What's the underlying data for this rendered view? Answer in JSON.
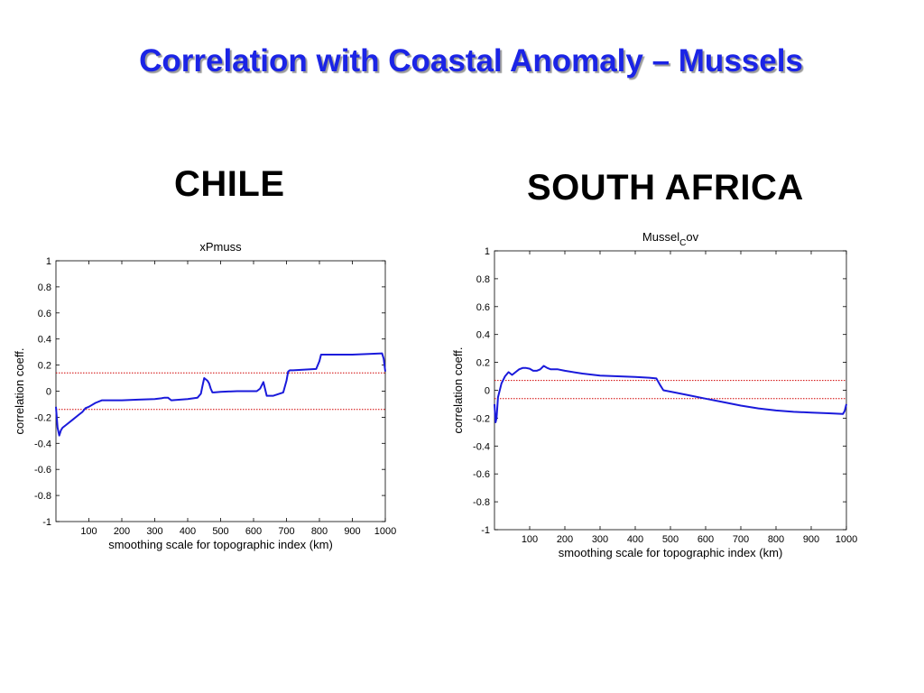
{
  "slide": {
    "title": "Correlation with Coastal Anomaly – Mussels"
  },
  "countries": [
    "CHILE",
    "SOUTH AFRICA"
  ],
  "colors": {
    "title": "#1b24e6",
    "line": "#1a1adb",
    "threshold": "#d10000"
  },
  "chart_data": [
    {
      "type": "line",
      "panel": "CHILE",
      "title": "xPmuss",
      "xlabel": "smoothing scale for topographic index (km)",
      "ylabel": "correlation coeff.",
      "xlim": [
        0,
        1000
      ],
      "ylim": [
        -1,
        1
      ],
      "xticks": [
        100,
        200,
        300,
        400,
        500,
        600,
        700,
        800,
        900,
        1000
      ],
      "yticks": [
        -1,
        -0.8,
        -0.6,
        -0.4,
        -0.2,
        0,
        0.2,
        0.4,
        0.6,
        0.8,
        1
      ],
      "grid": false,
      "series": [
        {
          "x": [
            0,
            5,
            10,
            15,
            20,
            30,
            50,
            70,
            80,
            90,
            100,
            120,
            140,
            160,
            170,
            200,
            250,
            300,
            320,
            330,
            340,
            350,
            400,
            430,
            440,
            445,
            450,
            460,
            465,
            470,
            475,
            480,
            500,
            550,
            610,
            620,
            630,
            640,
            660,
            690,
            700,
            705,
            710,
            720,
            790,
            800,
            805,
            810,
            850,
            900,
            950,
            990,
            995,
            1000
          ],
          "y": [
            -0.12,
            -0.28,
            -0.34,
            -0.3,
            -0.28,
            -0.26,
            -0.22,
            -0.18,
            -0.16,
            -0.13,
            -0.12,
            -0.09,
            -0.07,
            -0.07,
            -0.07,
            -0.07,
            -0.065,
            -0.06,
            -0.055,
            -0.05,
            -0.05,
            -0.07,
            -0.06,
            -0.05,
            -0.02,
            0.04,
            0.1,
            0.08,
            0.06,
            0.02,
            -0.01,
            -0.01,
            -0.005,
            0.0,
            0.0,
            0.02,
            0.07,
            -0.035,
            -0.035,
            -0.01,
            0.08,
            0.15,
            0.16,
            0.16,
            0.17,
            0.23,
            0.28,
            0.28,
            0.28,
            0.28,
            0.285,
            0.29,
            0.25,
            0.15
          ]
        }
      ],
      "thresholds": [
        0.14,
        -0.14
      ]
    },
    {
      "type": "line",
      "panel": "SOUTH AFRICA",
      "title": "MusselCov",
      "title_parts": [
        "Mussel",
        "C",
        "ov"
      ],
      "xlabel": "smoothing scale for topographic index (km)",
      "ylabel": "correlation coeff.",
      "xlim": [
        0,
        1000
      ],
      "ylim": [
        -1,
        1
      ],
      "xticks": [
        100,
        200,
        300,
        400,
        500,
        600,
        700,
        800,
        900,
        1000
      ],
      "yticks": [
        -1,
        -0.8,
        -0.6,
        -0.4,
        -0.2,
        0,
        0.2,
        0.4,
        0.6,
        0.8,
        1
      ],
      "grid": false,
      "series": [
        {
          "x": [
            0,
            3,
            6,
            10,
            20,
            30,
            40,
            50,
            60,
            70,
            80,
            90,
            100,
            110,
            120,
            130,
            140,
            150,
            160,
            180,
            200,
            250,
            300,
            350,
            400,
            440,
            460,
            470,
            480,
            500,
            550,
            600,
            650,
            700,
            750,
            800,
            850,
            900,
            950,
            990,
            995,
            1000
          ],
          "y": [
            -0.1,
            -0.23,
            -0.2,
            -0.05,
            0.05,
            0.1,
            0.13,
            0.11,
            0.13,
            0.15,
            0.16,
            0.16,
            0.155,
            0.14,
            0.14,
            0.15,
            0.175,
            0.16,
            0.15,
            0.15,
            0.14,
            0.12,
            0.105,
            0.1,
            0.095,
            0.09,
            0.085,
            0.04,
            0.0,
            -0.01,
            -0.035,
            -0.06,
            -0.085,
            -0.11,
            -0.13,
            -0.145,
            -0.155,
            -0.16,
            -0.165,
            -0.17,
            -0.15,
            -0.1
          ]
        }
      ],
      "thresholds": [
        0.07,
        -0.06
      ]
    }
  ]
}
